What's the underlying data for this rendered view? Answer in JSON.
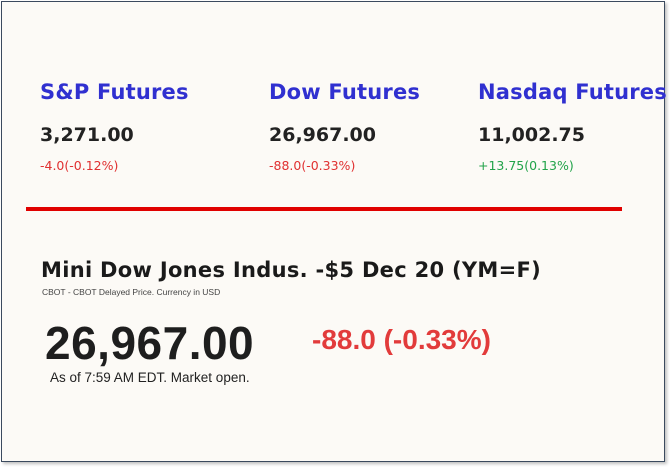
{
  "futures": [
    {
      "name": "S&P Futures",
      "price": "3,271.00",
      "change": "-4.0(-0.12%)",
      "direction": "down"
    },
    {
      "name": "Dow Futures",
      "price": "26,967.00",
      "change": "-88.0(-0.33%)",
      "direction": "down"
    },
    {
      "name": "Nasdaq Futures",
      "price": "11,002.75",
      "change": "+13.75(0.13%)",
      "direction": "up"
    }
  ],
  "quote": {
    "title": "Mini Dow Jones Indus. -$5 Dec 20 (YM=F)",
    "subtitle": "CBOT - CBOT Delayed Price. Currency in USD",
    "price": "26,967.00",
    "change": "-88.0 (-0.33%)",
    "as_of": "As of 7:59 AM EDT. Market open."
  },
  "colors": {
    "name_blue": "#3030d0",
    "negative_red": "#e03030",
    "positive_green": "#22a34a",
    "divider_red": "#e00000"
  }
}
